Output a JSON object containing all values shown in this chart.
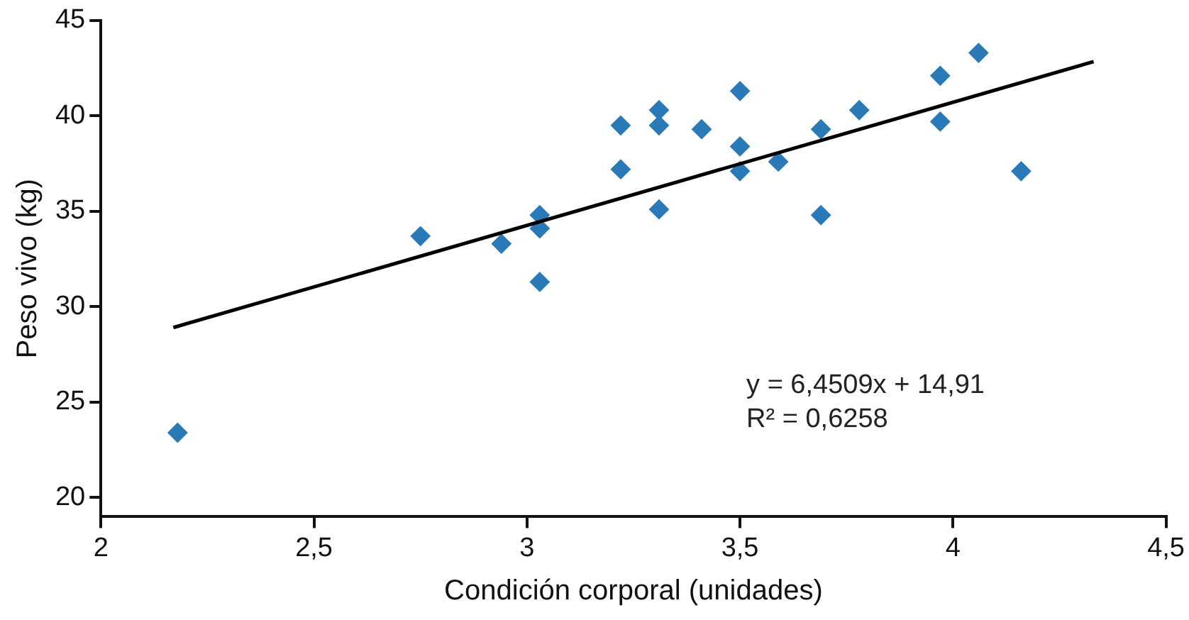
{
  "chart_data": {
    "type": "scatter",
    "xlabel": "Condición corporal (unidades)",
    "ylabel": "Peso vivo (kg)",
    "xlim": [
      2,
      4.5
    ],
    "xticks": [
      2,
      {
        "value": 2.5,
        "label": "2,5"
      },
      3,
      {
        "value": 3.5,
        "label": "3,5"
      },
      4,
      {
        "value": 4.5,
        "label": "4,5"
      }
    ],
    "ylim": [
      19,
      45
    ],
    "yticks": [
      20,
      25,
      30,
      35,
      40,
      45
    ],
    "grid": false,
    "legend": false,
    "marker": "diamond",
    "series": [
      {
        "color": "#2a7ab8",
        "x": [
          2.18,
          2.75,
          2.94,
          3.03,
          3.03,
          3.03,
          3.22,
          3.22,
          3.31,
          3.31,
          3.31,
          3.41,
          3.5,
          3.5,
          3.5,
          3.59,
          3.69,
          3.69,
          3.78,
          3.97,
          3.97,
          4.06,
          4.16
        ],
        "values": [
          23.4,
          33.7,
          33.3,
          34.8,
          34.1,
          31.3,
          39.5,
          37.2,
          40.3,
          39.5,
          35.1,
          39.3,
          41.3,
          38.4,
          37.1,
          37.6,
          39.3,
          34.8,
          40.3,
          42.1,
          39.7,
          43.3,
          37.1
        ]
      },
      {
        "type": "line",
        "color": "#000000",
        "marker": "none",
        "x": [
          2.17,
          4.33
        ],
        "values": [
          28.91,
          42.84
        ]
      }
    ],
    "annotations": [
      "y = 6,4509x + 14,91",
      "R² = 0,6258"
    ]
  }
}
